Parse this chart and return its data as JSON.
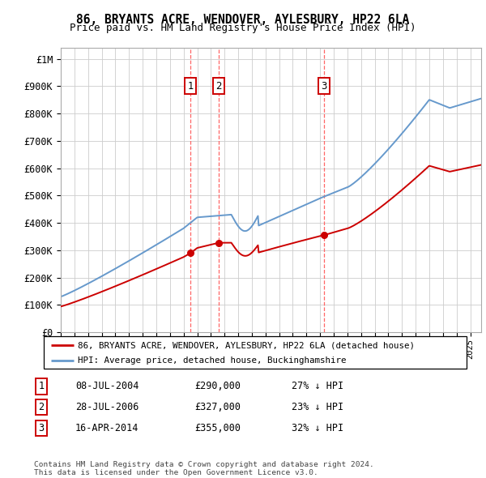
{
  "title": "86, BRYANTS ACRE, WENDOVER, AYLESBURY, HP22 6LA",
  "subtitle": "Price paid vs. HM Land Registry's House Price Index (HPI)",
  "ylabel_ticks": [
    "£0",
    "£100K",
    "£200K",
    "£300K",
    "£400K",
    "£500K",
    "£600K",
    "£700K",
    "£800K",
    "£900K",
    "£1M"
  ],
  "ytick_values": [
    0,
    100000,
    200000,
    300000,
    400000,
    500000,
    600000,
    700000,
    800000,
    900000,
    1000000
  ],
  "ylim": [
    0,
    1040000
  ],
  "xlim_start": 1995.0,
  "xlim_end": 2025.8,
  "sale_color": "#cc0000",
  "hpi_color": "#6699cc",
  "transactions": [
    {
      "date_decimal": 2004.52,
      "price": 290000,
      "label": "1"
    },
    {
      "date_decimal": 2006.57,
      "price": 327000,
      "label": "2"
    },
    {
      "date_decimal": 2014.29,
      "price": 355000,
      "label": "3"
    }
  ],
  "legend_sale_label": "86, BRYANTS ACRE, WENDOVER, AYLESBURY, HP22 6LA (detached house)",
  "legend_hpi_label": "HPI: Average price, detached house, Buckinghamshire",
  "table_rows": [
    {
      "num": "1",
      "date": "08-JUL-2004",
      "price": "£290,000",
      "hpi": "27% ↓ HPI"
    },
    {
      "num": "2",
      "date": "28-JUL-2006",
      "price": "£327,000",
      "hpi": "23% ↓ HPI"
    },
    {
      "num": "3",
      "date": "16-APR-2014",
      "price": "£355,000",
      "hpi": "32% ↓ HPI"
    }
  ],
  "footer": "Contains HM Land Registry data © Crown copyright and database right 2024.\nThis data is licensed under the Open Government Licence v3.0.",
  "background_color": "#ffffff",
  "grid_color": "#cccccc",
  "vline_color": "#ff6666",
  "box_color": "#cc0000"
}
